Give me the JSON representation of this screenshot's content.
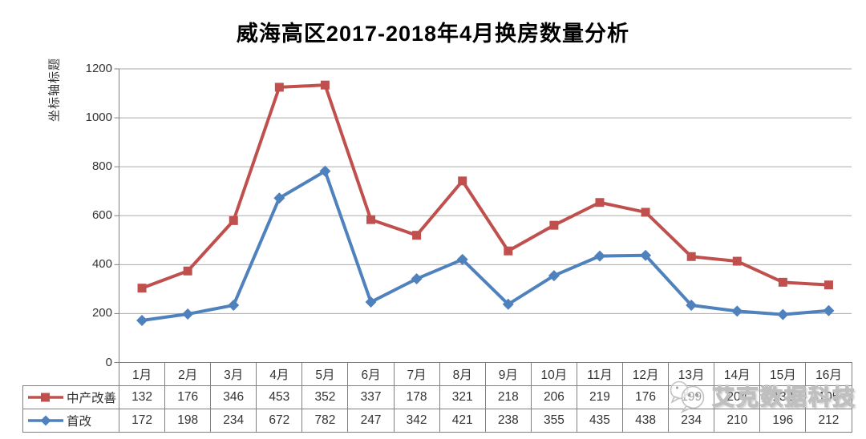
{
  "title": "威海高区2017-2018年4月换房数量分析",
  "y_axis": {
    "title": "坐标轴标题",
    "ticks": [
      1200,
      1000,
      800,
      600,
      400,
      200,
      0
    ]
  },
  "watermark": {
    "text": "艾克数据科技"
  },
  "chart_data": {
    "type": "line",
    "plot_mode": "stacked",
    "stacked": true,
    "title": "威海高区2017-2018年4月换房数量分析",
    "xlabel": "",
    "ylabel": "坐标轴标题",
    "ylim": [
      0,
      1200
    ],
    "grid": true,
    "legend_position": "table-left",
    "categories": [
      "1月",
      "2月",
      "3月",
      "4月",
      "5月",
      "6月",
      "7月",
      "8月",
      "9月",
      "10月",
      "11月",
      "12月",
      "13月",
      "14月",
      "15月",
      "16月"
    ],
    "series": [
      {
        "name": "中产改善",
        "color": "#C0504D",
        "marker": "square",
        "values": [
          132,
          176,
          346,
          453,
          352,
          337,
          178,
          321,
          218,
          206,
          219,
          176,
          199,
          204,
          132,
          105
        ]
      },
      {
        "name": "首改",
        "color": "#4F81BD",
        "marker": "diamond",
        "values": [
          172,
          198,
          234,
          672,
          782,
          247,
          342,
          421,
          238,
          355,
          435,
          438,
          234,
          210,
          196,
          212
        ]
      }
    ]
  },
  "colors": {
    "gridline": "#ABABAB",
    "axis": "#808080",
    "table_border": "#808080",
    "text": "#333333"
  }
}
